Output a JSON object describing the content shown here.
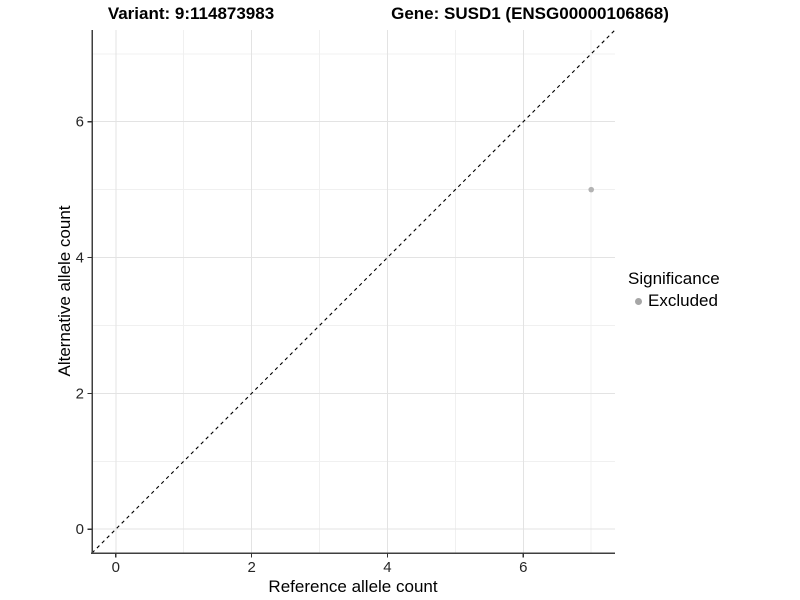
{
  "chart_data": {
    "type": "scatter",
    "titles": {
      "variant": "Variant: 9:114873983",
      "gene": "Gene: SUSD1 (ENSG00000106868)"
    },
    "xlabel": "Reference allele count",
    "ylabel": "Alternative allele count",
    "xlim": [
      -0.35,
      7.35
    ],
    "ylim": [
      -0.35,
      7.35
    ],
    "x_major_ticks": [
      0,
      2,
      4,
      6
    ],
    "y_major_ticks": [
      0,
      2,
      4,
      6
    ],
    "x_minor_gridlines": [
      1,
      3,
      5,
      7
    ],
    "y_minor_gridlines": [
      1,
      3,
      5,
      7
    ],
    "grid": "major+minor",
    "legend_position": "right",
    "identity_line": {
      "equation": "y = x",
      "style": "dashed",
      "color": "#000000"
    },
    "series": [
      {
        "name": "Excluded",
        "color": "#b3b3b3",
        "points": [
          {
            "x": 7,
            "y": 5
          }
        ]
      }
    ],
    "legend": {
      "title": "Significance",
      "items": [
        {
          "label": "Excluded",
          "color": "#a6a6a6",
          "marker": "circle-icon"
        }
      ]
    }
  },
  "colors": {
    "background": "#ffffff",
    "grid_major": "#e3e3e3",
    "grid_minor": "#f0f0f0",
    "axis_line": "#3f3f3f",
    "tick_mark": "#333333",
    "tick_label": "#262626",
    "title_text": "#000000"
  }
}
